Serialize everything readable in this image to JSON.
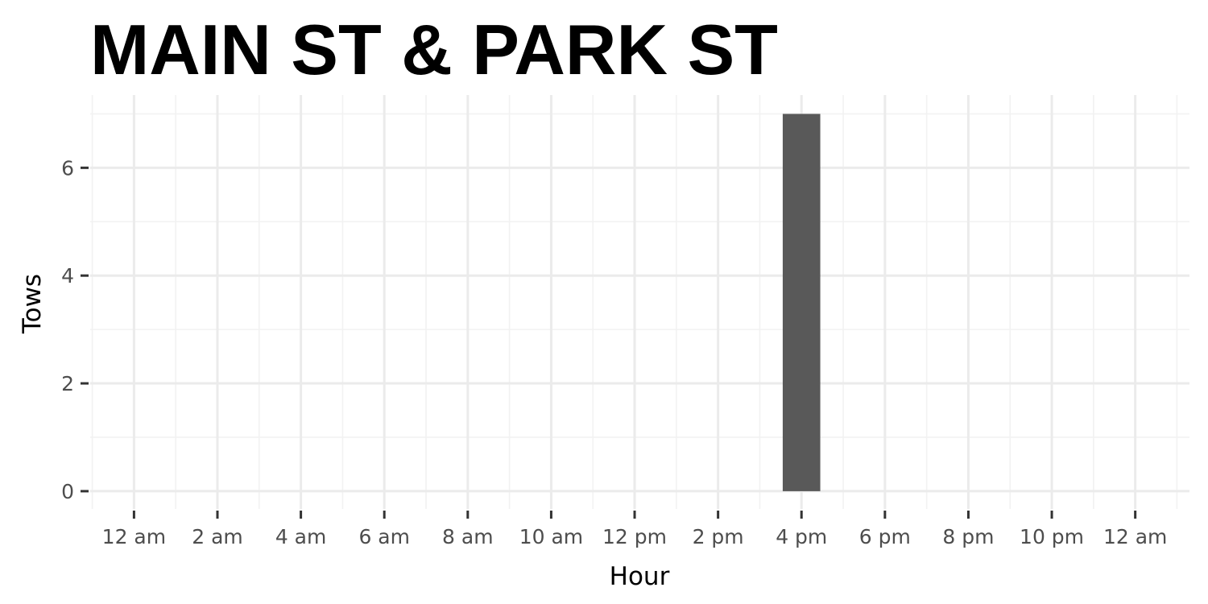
{
  "chart_data": {
    "type": "bar",
    "title": "MAIN ST & PARK ST",
    "xlabel": "Hour",
    "ylabel": "Tows",
    "x_axis": {
      "min": 0,
      "max": 24,
      "unit": "hour of day",
      "ticks": [
        0,
        2,
        4,
        6,
        8,
        10,
        12,
        14,
        16,
        18,
        20,
        22,
        24
      ],
      "tick_labels": [
        "12 am",
        "2 am",
        "4 am",
        "6 am",
        "8 am",
        "10 am",
        "12 pm",
        "2 pm",
        "4 pm",
        "6 pm",
        "8 pm",
        "10 pm",
        "12 am"
      ]
    },
    "y_axis": {
      "min": 0,
      "max": 7,
      "ticks": [
        0,
        2,
        4,
        6
      ],
      "tick_labels": [
        "0",
        "2",
        "4",
        "6"
      ]
    },
    "grid": true,
    "bars": [
      {
        "x": 16,
        "value": 7
      }
    ],
    "colors": {
      "bar": "#595959",
      "grid_major": "#ebebeb",
      "grid_minor": "#f2f2f2",
      "tick": "#333333"
    }
  }
}
